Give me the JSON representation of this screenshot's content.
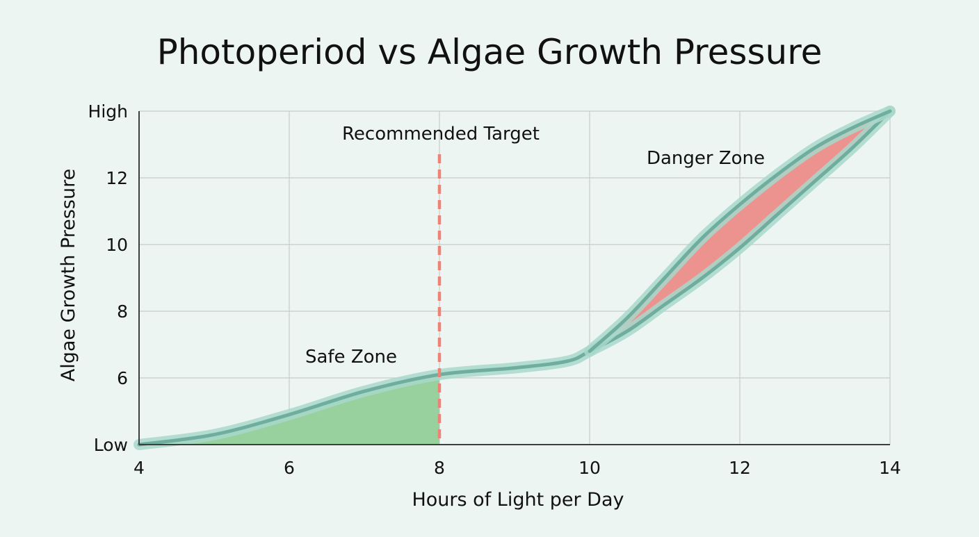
{
  "chart_data": {
    "type": "line",
    "title": "Photoperiod vs Algae Growth Pressure",
    "xlabel": "Hours of Light per Day",
    "ylabel": "Algae Growth Pressure",
    "xlim": [
      4,
      14
    ],
    "ylim": [
      4,
      14
    ],
    "x_ticks": [
      4,
      6,
      8,
      10,
      12,
      14
    ],
    "y_ticks": [
      {
        "value": 4,
        "label": "Low"
      },
      {
        "value": 6,
        "label": "6"
      },
      {
        "value": 8,
        "label": "8"
      },
      {
        "value": 10,
        "label": "10"
      },
      {
        "value": 12,
        "label": "12"
      },
      {
        "value": 14,
        "label": "High"
      }
    ],
    "grid": true,
    "series": [
      {
        "x": [
          4,
          5,
          6,
          7,
          8,
          9,
          9.7,
          10,
          10.5,
          11,
          11.5,
          12,
          12.5,
          13,
          13.5,
          14
        ],
        "y": [
          4.0,
          4.3,
          4.9,
          5.6,
          6.1,
          6.3,
          6.5,
          6.8,
          7.4,
          8.2,
          9.0,
          9.9,
          10.9,
          11.9,
          12.9,
          14.0
        ]
      },
      {
        "x": [
          10,
          10.5,
          11,
          11.5,
          12,
          12.5,
          13,
          13.5,
          14
        ],
        "y": [
          6.8,
          7.8,
          9.0,
          10.2,
          11.2,
          12.1,
          12.9,
          13.5,
          14.0
        ]
      }
    ],
    "annotations": {
      "target_x": 8,
      "target_label": "Recommended Target",
      "safe_label": "Safe Zone",
      "danger_label": "Danger Zone"
    },
    "colors": {
      "background": "#edf5f2",
      "grid": "#c9ccca",
      "axis": "#3c3f3e",
      "curve": "#6fae9e",
      "curve_glow": "#a8d8cb",
      "safe_fill": "#93cf98",
      "danger_fill": "#ec8d8a",
      "target_line": "#ec8376"
    }
  }
}
